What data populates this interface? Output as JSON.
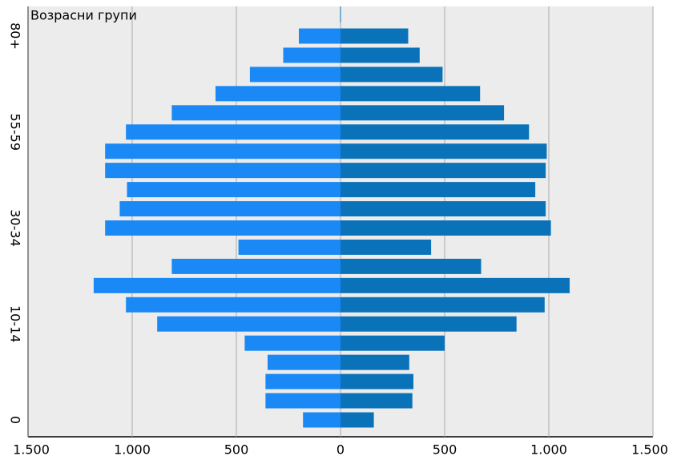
{
  "chart_data": {
    "type": "pyramid",
    "title": "Возрасни групи",
    "categories": [
      "80+",
      null,
      null,
      null,
      null,
      "55-59",
      null,
      null,
      null,
      null,
      "30-34",
      null,
      null,
      null,
      null,
      "10-14",
      null,
      null,
      null,
      null,
      "0"
    ],
    "series": [
      {
        "color": "#1a88f5",
        "values": [
          200,
          275,
          435,
          600,
          810,
          1030,
          1130,
          1130,
          1025,
          1060,
          1130,
          490,
          810,
          1185,
          1030,
          880,
          460,
          350,
          360,
          360,
          180
        ]
      },
      {
        "color": "#0a72b8",
        "values": [
          325,
          380,
          490,
          670,
          785,
          905,
          990,
          985,
          935,
          985,
          1010,
          435,
          675,
          1100,
          980,
          845,
          500,
          330,
          350,
          345,
          160
        ]
      }
    ],
    "xlim": [
      -1500,
      1500
    ],
    "xticks": [
      {
        "value": -1500,
        "label": "1.500"
      },
      {
        "value": -1000,
        "label": "1.000"
      },
      {
        "value": -500,
        "label": "500"
      },
      0,
      500,
      {
        "value": 1000,
        "label": "1.000"
      },
      {
        "value": 1500,
        "label": "1.500"
      }
    ],
    "grid": true
  }
}
